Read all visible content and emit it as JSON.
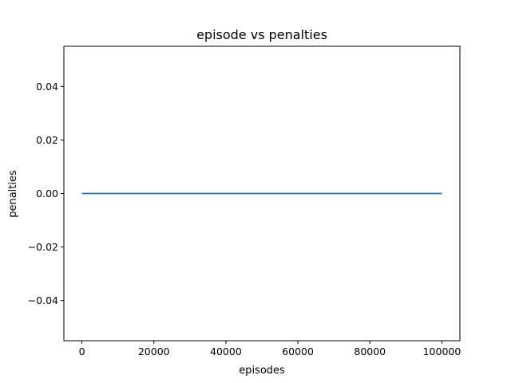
{
  "chart_data": {
    "type": "line",
    "title": "episode vs penalties",
    "xlabel": "episodes",
    "ylabel": "penalties",
    "xlim": [
      -5000,
      105000
    ],
    "ylim": [
      -0.055,
      0.055
    ],
    "xticks": [
      0,
      20000,
      40000,
      60000,
      80000,
      100000
    ],
    "xtick_labels": [
      "0",
      "20000",
      "40000",
      "60000",
      "80000",
      "100000"
    ],
    "yticks": [
      -0.04,
      -0.02,
      0.0,
      0.02,
      0.04
    ],
    "ytick_labels": [
      "−0.04",
      "−0.02",
      "0.00",
      "0.02",
      "0.04"
    ],
    "grid": false,
    "series": [
      {
        "color": "#1f77b4",
        "x": [
          0,
          100000
        ],
        "y": [
          0,
          0
        ]
      }
    ]
  }
}
